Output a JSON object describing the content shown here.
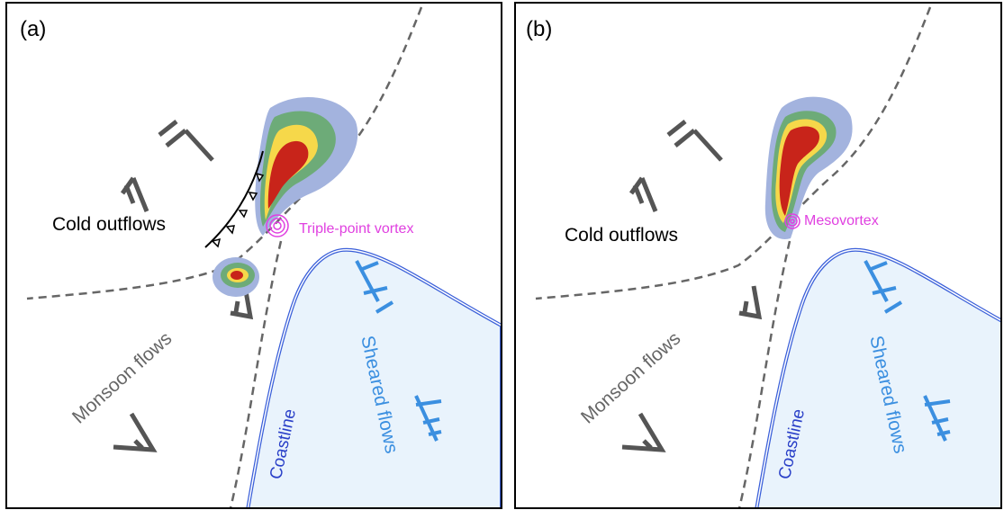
{
  "panels": [
    {
      "label": "(a)",
      "cold_outflows": "Cold outflows",
      "vortex": "Triple-point vortex",
      "monsoon": "Monsoon flows",
      "coastline": "Coastline",
      "sheared": "Sheared flows"
    },
    {
      "label": "(b)",
      "cold_outflows": "Cold outflows",
      "vortex": "Mesovortex",
      "monsoon": "Monsoon flows",
      "coastline": "Coastline",
      "sheared": "Sheared flows"
    }
  ]
}
